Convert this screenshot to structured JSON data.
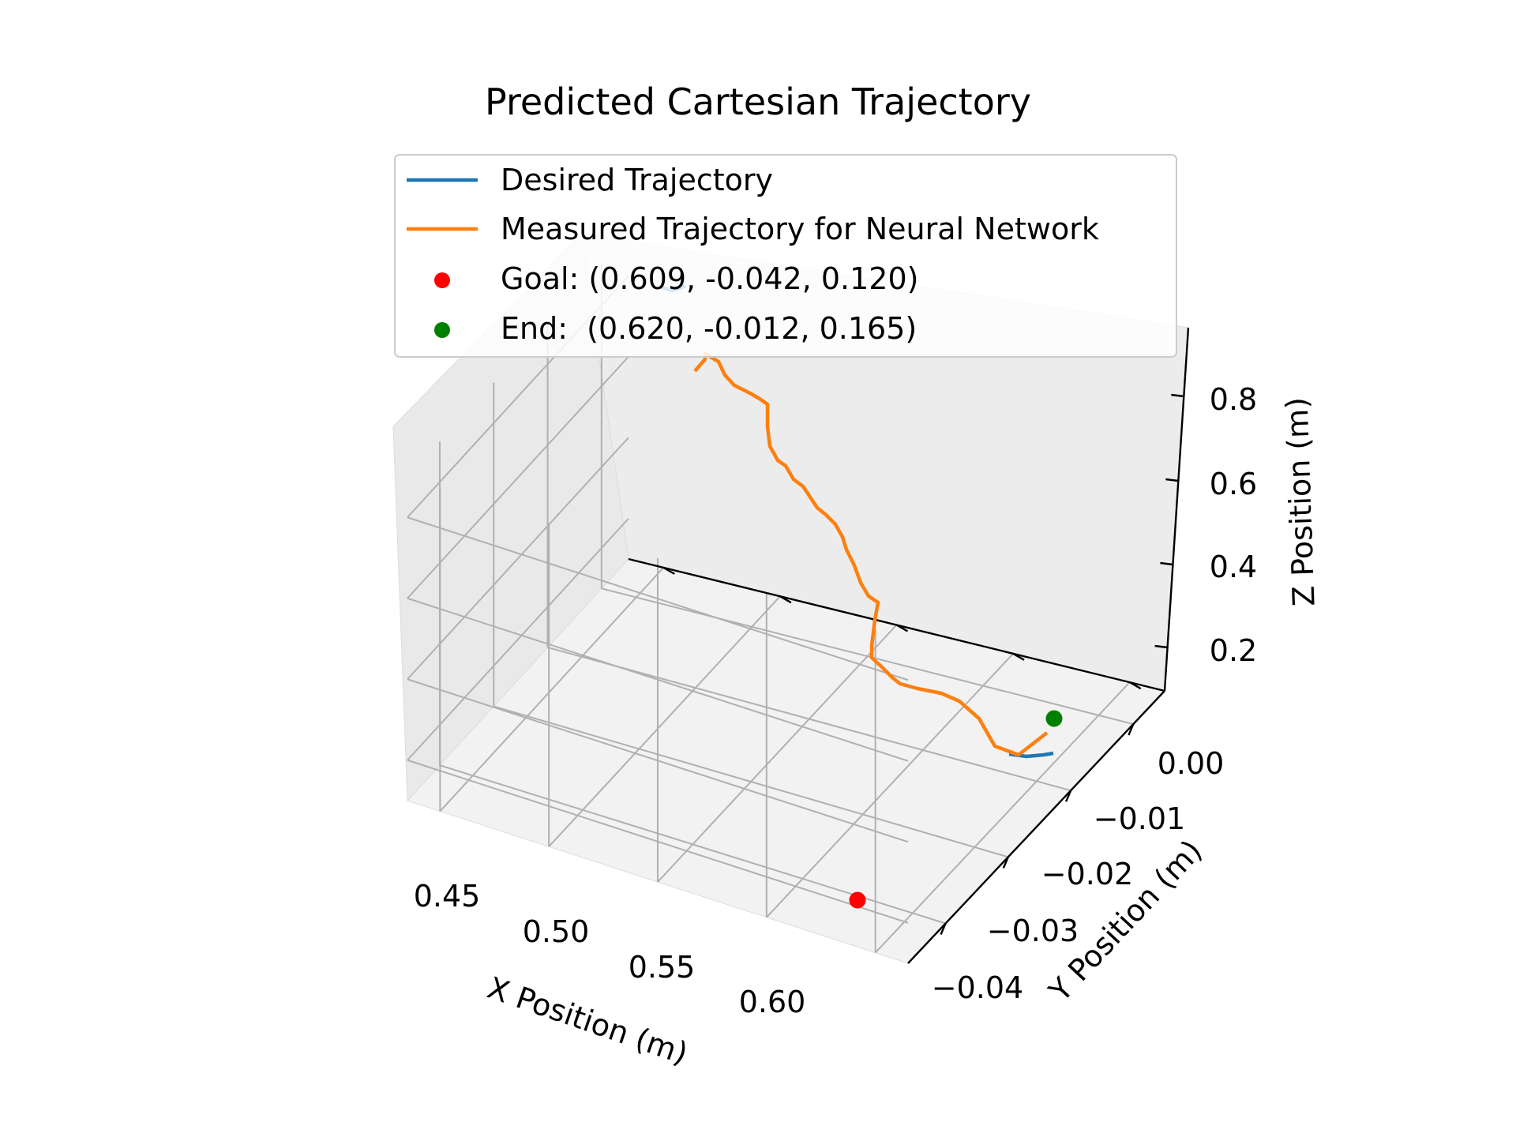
{
  "chart_data": {
    "type": "line",
    "projection": "3d",
    "title": "Predicted Cartesian Trajectory",
    "xlabel": "X Position (m)",
    "ylabel": "Y Position (m)",
    "zlabel": "Z Position (m)",
    "xlim": [
      0.42,
      0.625
    ],
    "ylim": [
      -0.043,
      0.003
    ],
    "zlim": [
      0.1,
      0.9
    ],
    "x_ticks": [
      "0.45",
      "0.50",
      "0.55",
      "0.60"
    ],
    "y_ticks": [
      "0.00",
      "−0.01",
      "−0.02",
      "−0.03",
      "−0.04"
    ],
    "z_ticks": [
      "0.2",
      "0.4",
      "0.6",
      "0.8"
    ],
    "grid": true,
    "legend_position": "top-center",
    "series": [
      {
        "name": "Desired Trajectory",
        "kind": "line",
        "color": "#1f77b4",
        "x": [
          0.573,
          0.58,
          0.586,
          0.59,
          0.5905
        ],
        "y": [
          -0.0025,
          -0.0015,
          -0.0005,
          0.0005,
          0.0012
        ],
        "z": [
          0.145,
          0.15,
          0.152,
          0.153,
          0.153
        ]
      },
      {
        "name": "Measured Trajectory for Neural Network",
        "kind": "line",
        "color": "#ff7f0e",
        "x": [
          0.423,
          0.428,
          0.432,
          0.436,
          0.44,
          0.445,
          0.451,
          0.456,
          0.461,
          0.466,
          0.472,
          0.477,
          0.482,
          0.486,
          0.49,
          0.495,
          0.499,
          0.505,
          0.509,
          0.514,
          0.518,
          0.522,
          0.526,
          0.531,
          0.536,
          0.541,
          0.546,
          0.55,
          0.555,
          0.56,
          0.565,
          0.57,
          0.575,
          0.58,
          0.587,
          0.594,
          0.605,
          0.613
        ],
        "y": [
          0.0,
          0.0,
          0.0,
          0.0,
          0.0,
          0.0,
          0.0,
          0.0,
          0.0,
          0.0,
          0.0,
          0.0,
          0.0,
          0.0,
          0.0,
          0.0,
          0.0,
          0.0,
          0.0,
          0.0,
          0.0,
          0.0,
          0.0,
          0.0,
          0.0,
          0.0,
          0.0,
          0.0,
          0.0,
          0.0,
          0.0,
          0.0,
          0.0,
          0.0,
          0.0,
          0.0,
          0.0,
          0.0
        ],
        "z": [
          0.96,
          0.95,
          0.93,
          0.88,
          0.87,
          0.85,
          0.82,
          0.78,
          0.75,
          0.73,
          0.7,
          0.66,
          0.64,
          0.62,
          0.6,
          0.58,
          0.56,
          0.52,
          0.48,
          0.45,
          0.42,
          0.4,
          0.37,
          0.34,
          0.31,
          0.29,
          0.27,
          0.26,
          0.25,
          0.24,
          0.22,
          0.2,
          0.19,
          0.16,
          0.13,
          0.11,
          0.13,
          0.16
        ]
      },
      {
        "name": "Goal: (0.609, -0.042, 0.120)",
        "kind": "point",
        "color": "#ff0000",
        "x": [
          0.609
        ],
        "y": [
          -0.042
        ],
        "z": [
          0.12
        ]
      },
      {
        "name": "End:  (0.620, -0.012, 0.165)",
        "kind": "point",
        "color": "#008000",
        "x": [
          0.62
        ],
        "y": [
          -0.012
        ],
        "z": [
          0.165
        ]
      }
    ]
  }
}
